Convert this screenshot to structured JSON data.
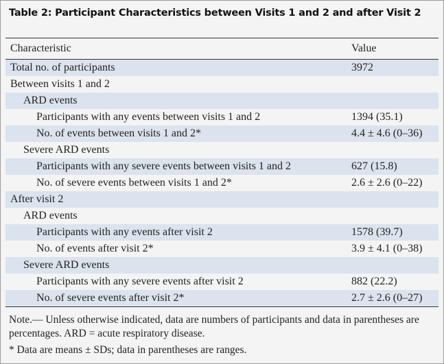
{
  "header": {
    "title": "Table 2: Participant Characteristics between Visits 1 and 2 and after Visit 2"
  },
  "table": {
    "columns": [
      "Characteristic",
      "Value"
    ],
    "rows": [
      [
        "Total no. of participants",
        "3972"
      ],
      [
        "Between visits 1 and 2"
      ],
      [
        "ARD events"
      ],
      [
        "Participants with any events between visits 1 and 2",
        "1394 (35.1)"
      ],
      [
        "No. of events between visits 1 and 2*",
        "4.4 ± 4.6 (0–36)"
      ],
      [
        "Severe ARD events"
      ],
      [
        "Participants with any severe events between visits 1 and 2",
        "627 (15.8)"
      ],
      [
        "No. of severe events between visits 1 and 2*",
        "2.6 ± 2.6 (0–22)"
      ],
      [
        "After visit 2"
      ],
      [
        "ARD events"
      ],
      [
        "Participants with any events after visit 2",
        "1578 (39.7)"
      ],
      [
        "No. of events after visit 2*",
        "3.9 ± 4.1 (0–38)"
      ],
      [
        "Severe ARD events"
      ],
      [
        "Participants with any severe events after visit 2",
        "882 (22.2)"
      ],
      [
        "No. of severe events after visit 2*",
        "2.7 ± 2.6 (0–27)"
      ]
    ]
  },
  "notes": [
    "Note.— Unless otherwise indicated, data are numbers of participants and data in parentheses are percentages. ARD = acute respiratory disease.",
    "* Data are means ± SDs; data in parentheses are ranges."
  ]
}
